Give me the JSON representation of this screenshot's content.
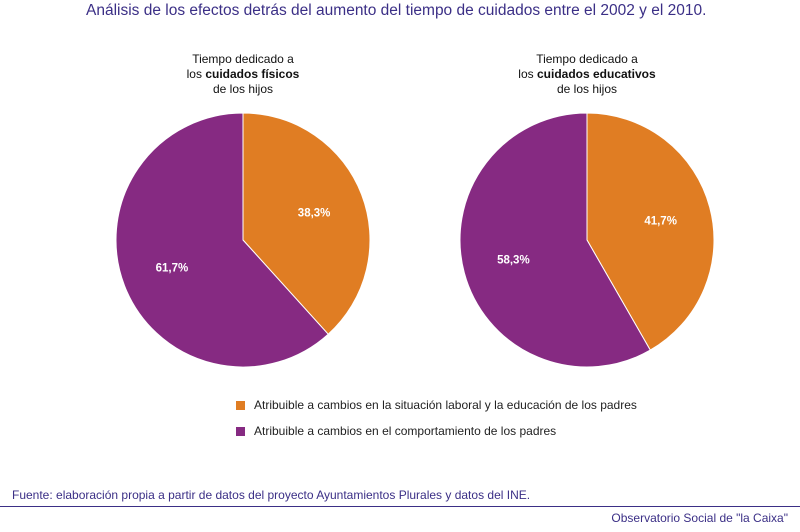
{
  "header": {
    "title": "Análisis de los efectos detrás del aumento del tiempo de cuidados entre el 2002 y el 2010."
  },
  "chart_data": [
    {
      "type": "pie",
      "title_lines": [
        {
          "pre": "Tiempo dedicado a",
          "bold": "",
          "post": ""
        },
        {
          "pre": "los ",
          "bold": "cuidados físicos",
          "post": ""
        },
        {
          "pre": "de los hijos",
          "bold": "",
          "post": ""
        }
      ],
      "slices": [
        {
          "label": "38,3%",
          "value": 38.3,
          "color": "#e07d23"
        },
        {
          "label": "61,7%",
          "value": 61.7,
          "color": "#862a82"
        }
      ]
    },
    {
      "type": "pie",
      "title_lines": [
        {
          "pre": "Tiempo dedicado a",
          "bold": "",
          "post": ""
        },
        {
          "pre": "los ",
          "bold": "cuidados educativos",
          "post": ""
        },
        {
          "pre": "de los hijos",
          "bold": "",
          "post": ""
        }
      ],
      "slices": [
        {
          "label": "41,7%",
          "value": 41.7,
          "color": "#e07d23"
        },
        {
          "label": "58,3%",
          "value": 58.3,
          "color": "#862a82"
        }
      ]
    }
  ],
  "legend": {
    "items": [
      {
        "label": "Atribuible a cambios en la situación laboral y la educación de los padres",
        "color": "#e07d23"
      },
      {
        "label": "Atribuible a cambios en el comportamiento de los padres",
        "color": "#862a82"
      }
    ]
  },
  "footer": {
    "source": "Fuente: elaboración propia a partir de datos del proyecto Ayuntamientos Plurales y datos del INE.",
    "credit": "Observatorio Social de \"la Caixa\""
  }
}
